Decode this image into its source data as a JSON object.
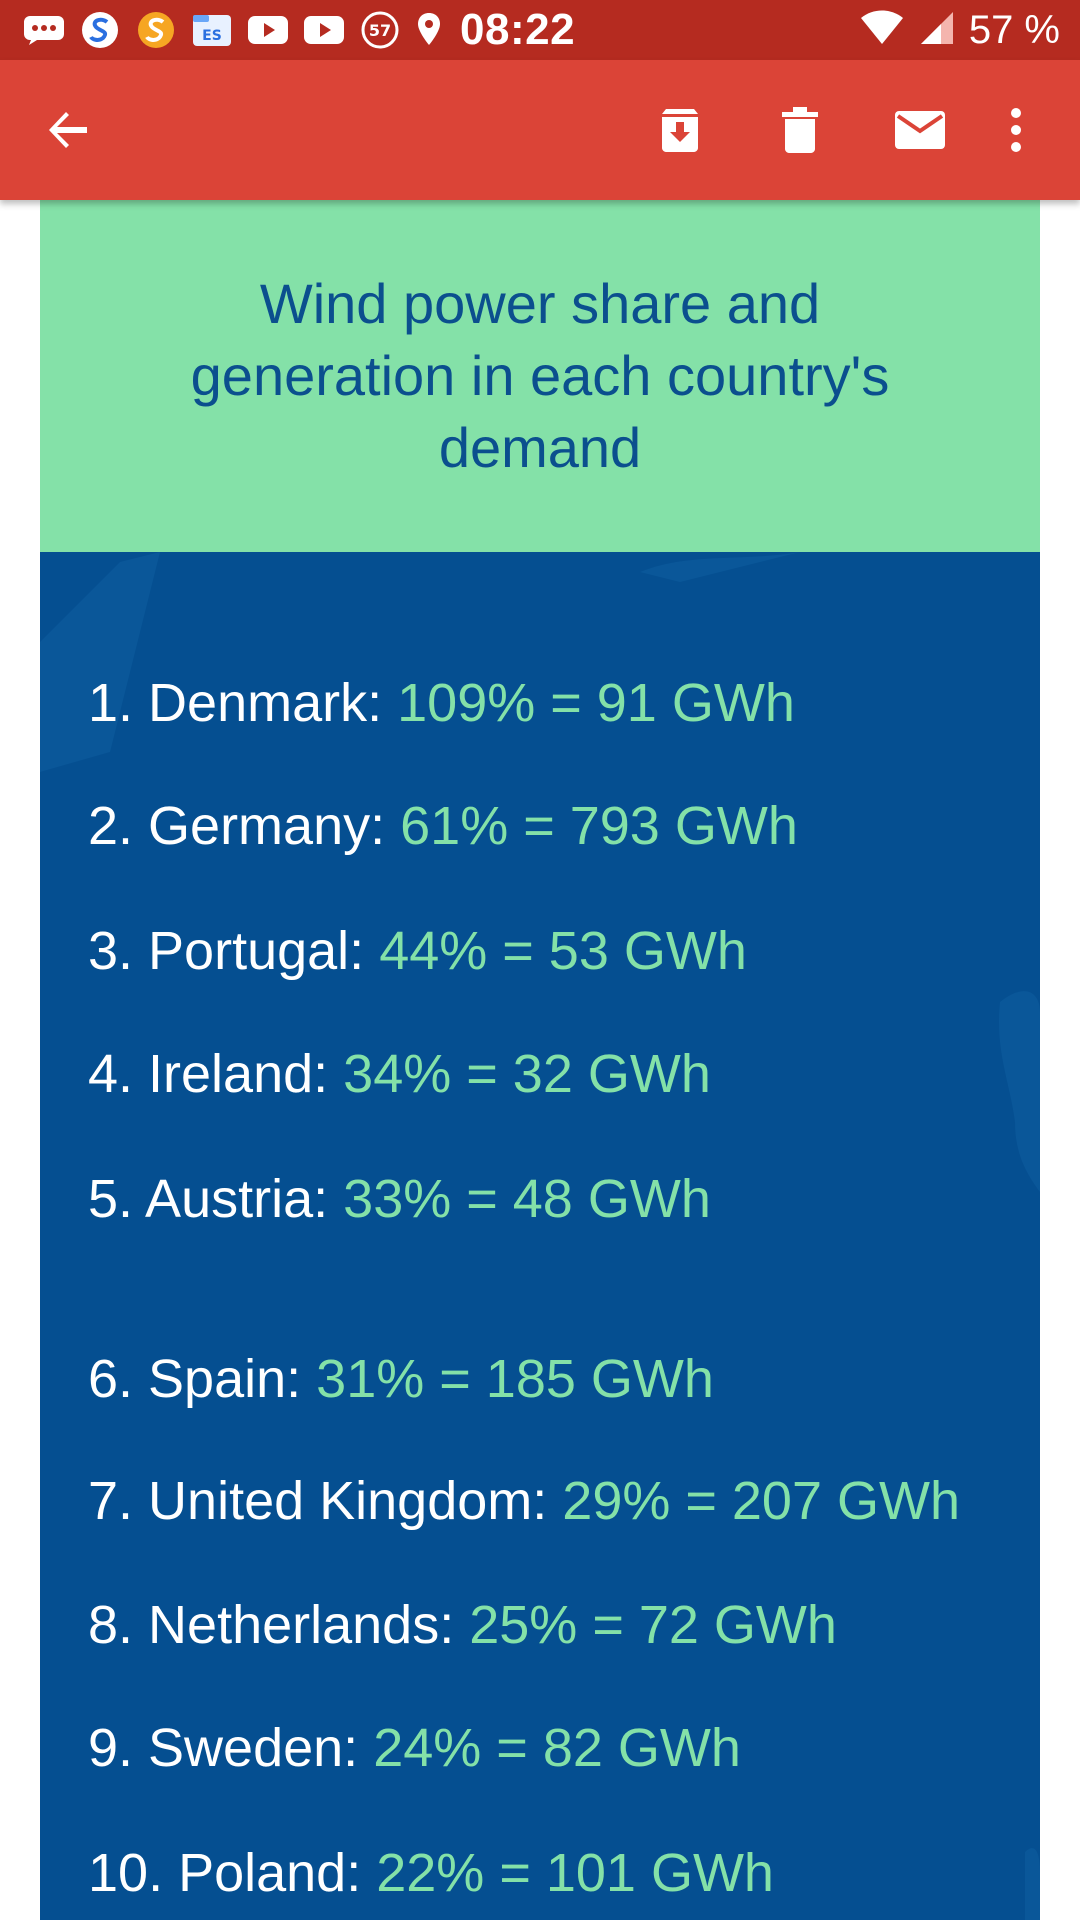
{
  "status_bar": {
    "time": "08:22",
    "battery": "57 %",
    "badge": "57",
    "icons": [
      "message-icon",
      "s-blue-icon",
      "s-orange-icon",
      "file-explorer-icon",
      "youtube-icon",
      "youtube-icon",
      "57-badge-icon",
      "location-icon",
      "wifi-icon",
      "signal-icon"
    ]
  },
  "app_bar": {
    "icons": [
      "back-arrow-icon",
      "archive-icon",
      "delete-icon",
      "mark-unread-icon",
      "more-vert-icon"
    ]
  },
  "email": {
    "title": "Wind power share and generation in each country's demand",
    "items": [
      {
        "rank": "1. Denmark:",
        "value": "109% = 91 GWh"
      },
      {
        "rank": "2. Germany:",
        "value": "61% = 793 GWh"
      },
      {
        "rank": "3. Portugal:",
        "value": "44% = 53 GWh"
      },
      {
        "rank": "4. Ireland:",
        "value": "34% = 32 GWh"
      },
      {
        "rank": "5. Austria:",
        "value": "33% = 48 GWh"
      },
      {
        "rank": "6. Spain:",
        "value": "31% = 185 GWh"
      },
      {
        "rank": "7. United Kingdom:",
        "value": "29% = 207 GWh"
      },
      {
        "rank": "8. Netherlands:",
        "value": "25% = 72 GWh"
      },
      {
        "rank": "9. Sweden:",
        "value": "24% = 82 GWh"
      },
      {
        "rank": "10. Poland:",
        "value": "22% = 101 GWh"
      }
    ]
  },
  "colors": {
    "status_bar": "#b52b20",
    "app_bar": "#db4437",
    "header_bg": "#84e1a8",
    "title_text": "#0b4f8e",
    "list_bg": "#054f91",
    "value_text": "#84e1a8"
  }
}
